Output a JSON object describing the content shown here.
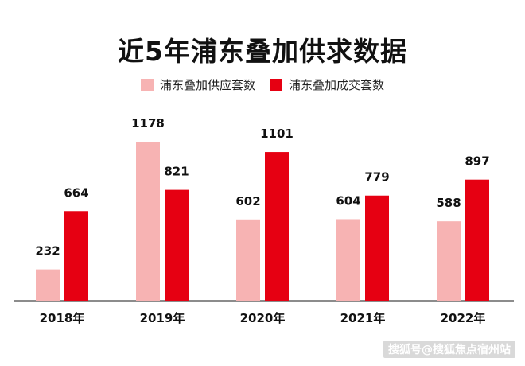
{
  "chart_data": {
    "type": "bar",
    "title": "近5年浦东叠加供求数据",
    "categories": [
      "2018年",
      "2019年",
      "2020年",
      "2021年",
      "2022年"
    ],
    "series": [
      {
        "name": "浦东叠加供应套数",
        "values": [
          232,
          1178,
          602,
          604,
          588
        ],
        "color": "#f7b3b3"
      },
      {
        "name": "浦东叠加成交套数",
        "values": [
          664,
          821,
          1101,
          779,
          897
        ],
        "color": "#e60012"
      }
    ],
    "xlabel": "",
    "ylabel": "",
    "ylim": [
      0,
      1178
    ],
    "grid": false,
    "legend_placement": "top-center"
  },
  "watermark": "搜狐号@搜狐焦点宿州站"
}
